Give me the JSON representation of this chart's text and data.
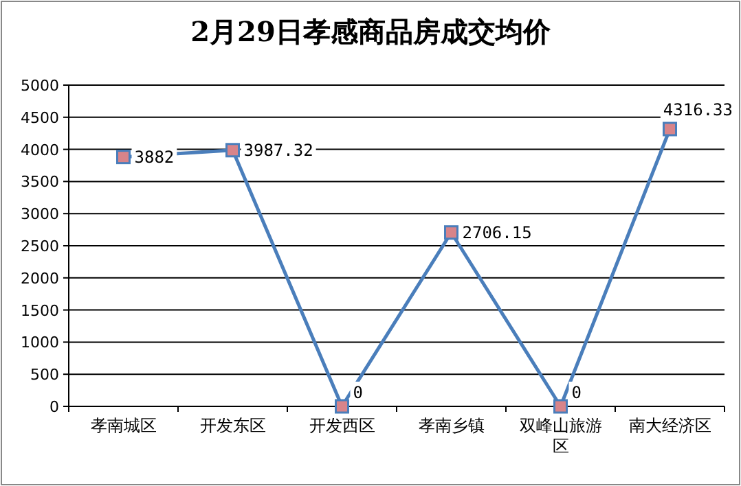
{
  "chart_data": {
    "type": "line",
    "title": "2月29日孝感商品房成交均价",
    "categories": [
      "孝南城区",
      "开发东区",
      "开发西区",
      "孝南乡镇",
      "双峰山旅游区",
      "南大经济区"
    ],
    "series": [
      {
        "color": "#4a7ebb",
        "values": [
          3882,
          3987.32,
          0,
          2706.15,
          0,
          4316.33
        ]
      }
    ],
    "ylim": [
      0,
      5000
    ],
    "yticks": [
      0,
      500,
      1000,
      1500,
      2000,
      2500,
      3000,
      3500,
      4000,
      4500,
      5000
    ],
    "grid": "y",
    "marker": "square",
    "data_labels": true
  }
}
